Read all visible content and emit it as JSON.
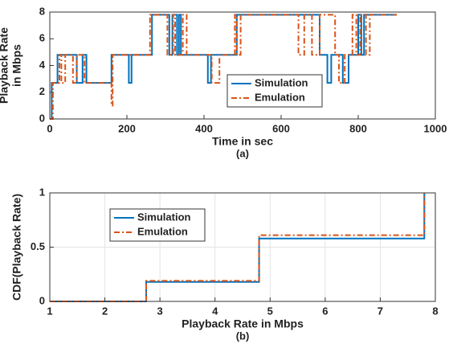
{
  "chart_data": [
    {
      "type": "line",
      "xlabel": "Time in sec",
      "ylabel": [
        "Playback Rate",
        "in Mbps"
      ],
      "caption": "(a)",
      "xlim": [
        0,
        1000
      ],
      "xticks": [
        0,
        200,
        400,
        600,
        800,
        1000
      ],
      "ylim": [
        0,
        8
      ],
      "yticks": [
        0,
        2,
        4,
        6,
        8
      ],
      "grid": false,
      "legend": "lower center",
      "series": [
        {
          "name": "Simulation",
          "color": "#0072bd",
          "dash": "solid",
          "x": [
            0,
            5,
            5,
            20,
            20,
            70,
            70,
            85,
            85,
            95,
            95,
            160,
            160,
            205,
            205,
            212,
            212,
            265,
            265,
            310,
            310,
            318,
            318,
            330,
            330,
            335,
            335,
            340,
            340,
            410,
            410,
            418,
            418,
            485,
            485,
            700,
            700,
            720,
            720,
            730,
            730,
            760,
            760,
            775,
            775,
            800,
            800,
            808,
            808,
            815,
            815,
            900
          ],
          "values": [
            0,
            0,
            2.7,
            2.7,
            4.8,
            4.8,
            2.7,
            2.7,
            4.8,
            4.8,
            2.7,
            2.7,
            4.8,
            4.8,
            2.7,
            2.7,
            4.8,
            4.8,
            7.8,
            7.8,
            4.8,
            4.8,
            7.8,
            7.8,
            4.8,
            4.8,
            7.8,
            7.8,
            4.8,
            4.8,
            2.7,
            2.7,
            4.8,
            4.8,
            7.8,
            7.8,
            4.8,
            4.8,
            2.7,
            2.7,
            4.8,
            4.8,
            2.7,
            2.7,
            4.8,
            4.8,
            7.8,
            7.8,
            4.8,
            4.8,
            7.8,
            7.8
          ]
        },
        {
          "name": "Emulation",
          "color": "#d95319",
          "dash": "dashdot",
          "x": [
            0,
            8,
            8,
            25,
            25,
            30,
            30,
            40,
            40,
            60,
            60,
            70,
            70,
            90,
            90,
            160,
            160,
            163,
            163,
            260,
            260,
            305,
            305,
            320,
            320,
            325,
            325,
            345,
            345,
            355,
            355,
            420,
            420,
            440,
            440,
            480,
            480,
            485,
            485,
            495,
            495,
            645,
            645,
            660,
            660,
            680,
            680,
            700,
            700,
            740,
            740,
            750,
            750,
            765,
            765,
            785,
            785,
            795,
            795,
            805,
            805,
            820,
            820,
            830,
            830,
            900
          ],
          "values": [
            0,
            0,
            2.7,
            2.7,
            4.8,
            4.8,
            2.7,
            2.7,
            4.8,
            4.8,
            2.7,
            2.7,
            4.8,
            4.8,
            2.7,
            2.7,
            1,
            1,
            4.8,
            4.8,
            7.8,
            7.8,
            4.8,
            4.8,
            7.8,
            7.8,
            4.8,
            4.8,
            7.8,
            7.8,
            4.8,
            4.8,
            2.7,
            2.7,
            4.8,
            4.8,
            7.8,
            7.8,
            4.8,
            4.8,
            7.8,
            7.8,
            4.8,
            4.8,
            7.8,
            7.8,
            4.8,
            4.8,
            7.8,
            7.8,
            4.8,
            4.8,
            2.7,
            2.7,
            4.8,
            4.8,
            7.8,
            7.8,
            4.8,
            4.8,
            7.8,
            7.8,
            4.8,
            4.8,
            7.8,
            7.8
          ]
        }
      ]
    },
    {
      "type": "line",
      "xlabel": "Playback Rate in Mbps",
      "ylabel": [
        "CDF(Playback Rate)"
      ],
      "caption": "(b)",
      "xlim": [
        1,
        8
      ],
      "xticks": [
        1,
        2,
        3,
        4,
        5,
        6,
        7,
        8
      ],
      "ylim": [
        0,
        1
      ],
      "yticks": [
        0,
        0.5,
        1
      ],
      "grid": true,
      "legend": "upper left",
      "series": [
        {
          "name": "Simulation",
          "color": "#0072bd",
          "dash": "solid",
          "x": [
            1,
            2.75,
            2.75,
            4.8,
            4.8,
            7.8,
            7.8
          ],
          "values": [
            0,
            0,
            0.18,
            0.18,
            0.58,
            0.58,
            1
          ]
        },
        {
          "name": "Emulation",
          "color": "#d95319",
          "dash": "dashdot",
          "x": [
            1,
            2.75,
            2.75,
            4.8,
            4.8,
            7.8,
            7.8
          ],
          "values": [
            0,
            0,
            0.19,
            0.19,
            0.61,
            0.61,
            1
          ]
        }
      ]
    }
  ]
}
